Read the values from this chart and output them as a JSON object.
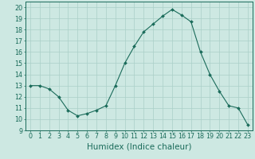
{
  "x": [
    0,
    1,
    2,
    3,
    4,
    5,
    6,
    7,
    8,
    9,
    10,
    11,
    12,
    13,
    14,
    15,
    16,
    17,
    18,
    19,
    20,
    21,
    22,
    23
  ],
  "y": [
    13.0,
    13.0,
    12.7,
    12.0,
    10.8,
    10.3,
    10.5,
    10.8,
    11.2,
    13.0,
    15.0,
    16.5,
    17.8,
    18.5,
    19.2,
    19.8,
    19.3,
    18.7,
    16.0,
    14.0,
    12.5,
    11.2,
    11.0,
    9.5
  ],
  "line_color": "#1a6b5a",
  "marker": "D",
  "marker_size": 2.0,
  "bg_color": "#cde8e2",
  "grid_color": "#aacfc8",
  "xlabel": "Humidex (Indice chaleur)",
  "ylim": [
    9,
    20.5
  ],
  "xlim": [
    -0.5,
    23.5
  ],
  "yticks": [
    9,
    10,
    11,
    12,
    13,
    14,
    15,
    16,
    17,
    18,
    19,
    20
  ],
  "xticks": [
    0,
    1,
    2,
    3,
    4,
    5,
    6,
    7,
    8,
    9,
    10,
    11,
    12,
    13,
    14,
    15,
    16,
    17,
    18,
    19,
    20,
    21,
    22,
    23
  ],
  "tick_color": "#1a6b5a",
  "font_color": "#1a6b5a",
  "xlabel_fontsize": 7.5,
  "tick_fontsize": 5.8
}
